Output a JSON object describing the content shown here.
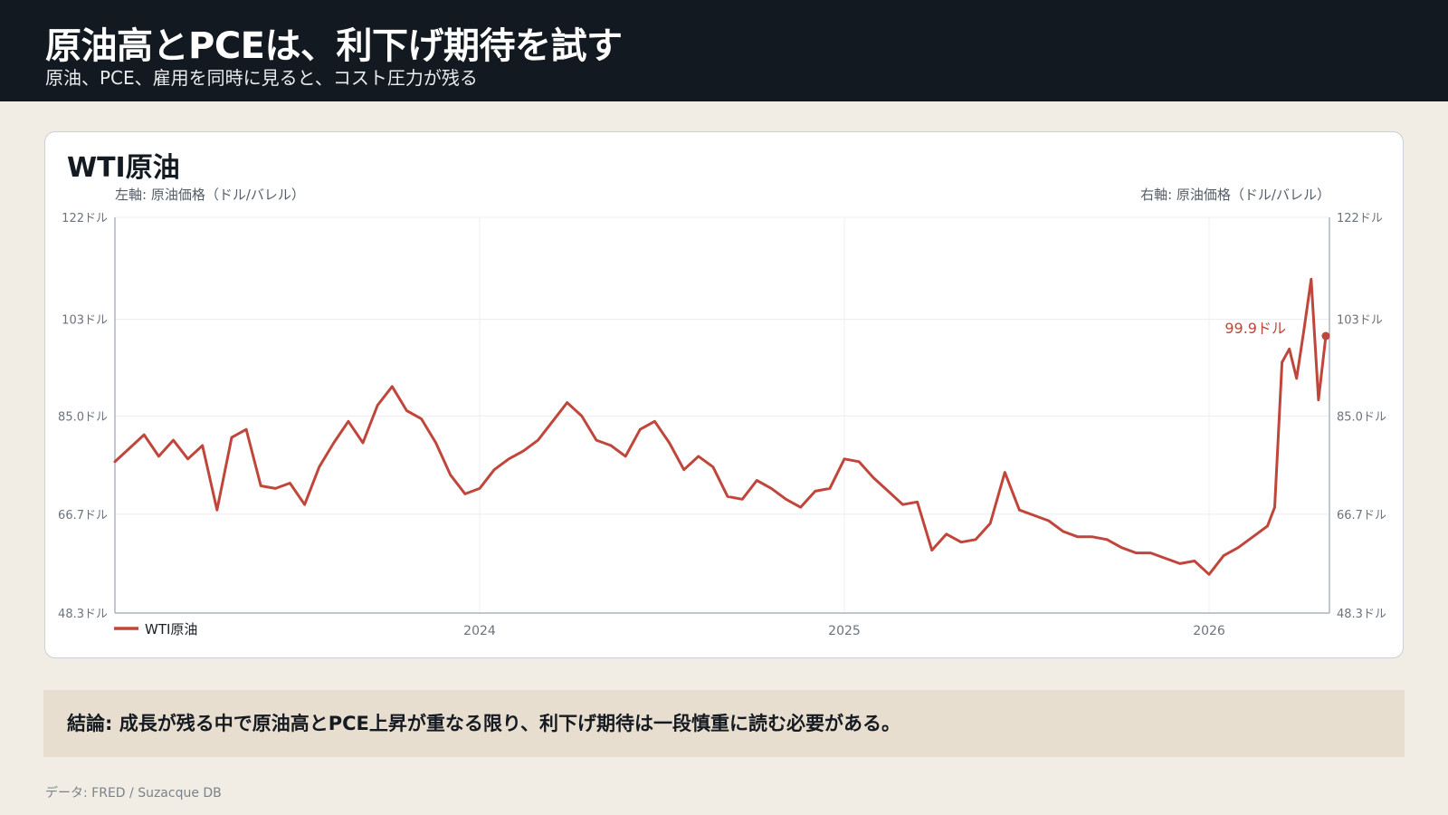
{
  "header": {
    "title": "原油高とPCEは、利下げ期待を試す",
    "subtitle": "原油、PCE、雇用を同時に見ると、コスト圧力が残る"
  },
  "card": {
    "title": "WTI原油",
    "left_axis_label": "左軸: 原油価格（ドル/バレル）",
    "right_axis_label": "右軸: 原油価格（ドル/バレル）"
  },
  "conclusion": "結論: 成長が残る中で原油高とPCE上昇が重なる限り、利下げ期待は一段慎重に読む必要がある。",
  "source": "データ: FRED / Suzacque DB",
  "colors": {
    "series": "#c0463b",
    "header_bg": "#121920",
    "page_bg": "#f2ede4",
    "conclusion_bg": "#e8ded0"
  },
  "chart_data": {
    "type": "line",
    "title": "WTI原油",
    "ylabel_left": "左軸: 原油価格（ドル/バレル）",
    "ylabel_right": "右軸: 原油価格（ドル/バレル）",
    "ylim": [
      48.3,
      122
    ],
    "yticks": [
      "48.3ドル",
      "66.7ドル",
      "85.0ドル",
      "103ドル",
      "122ドル"
    ],
    "ytick_values": [
      48.3,
      66.7,
      85.0,
      103,
      122
    ],
    "xlim": [
      2023.0,
      2026.33
    ],
    "xticks": [
      "2024",
      "2025",
      "2026"
    ],
    "xtick_values": [
      2024.0,
      2025.0,
      2026.0
    ],
    "grid": true,
    "legend": "bottom-left",
    "last_value_label": "99.9ドル",
    "series": [
      {
        "name": "WTI原油",
        "x": [
          2023.0,
          2023.04,
          2023.08,
          2023.12,
          2023.16,
          2023.2,
          2023.24,
          2023.28,
          2023.32,
          2023.36,
          2023.4,
          2023.44,
          2023.48,
          2023.52,
          2023.56,
          2023.6,
          2023.64,
          2023.68,
          2023.72,
          2023.76,
          2023.8,
          2023.84,
          2023.88,
          2023.92,
          2023.96,
          2024.0,
          2024.04,
          2024.08,
          2024.12,
          2024.16,
          2024.2,
          2024.24,
          2024.28,
          2024.32,
          2024.36,
          2024.4,
          2024.44,
          2024.48,
          2024.52,
          2024.56,
          2024.6,
          2024.64,
          2024.68,
          2024.72,
          2024.76,
          2024.8,
          2024.84,
          2024.88,
          2024.92,
          2024.96,
          2025.0,
          2025.04,
          2025.08,
          2025.12,
          2025.16,
          2025.2,
          2025.24,
          2025.28,
          2025.32,
          2025.36,
          2025.4,
          2025.44,
          2025.48,
          2025.52,
          2025.56,
          2025.6,
          2025.64,
          2025.68,
          2025.72,
          2025.76,
          2025.8,
          2025.84,
          2025.88,
          2025.92,
          2025.96,
          2026.0,
          2026.04,
          2026.08,
          2026.12,
          2026.16,
          2026.18,
          2026.2,
          2026.22,
          2026.24,
          2026.26,
          2026.28,
          2026.3,
          2026.32
        ],
        "values": [
          76.5,
          79.0,
          81.5,
          77.5,
          80.5,
          77.0,
          79.5,
          67.5,
          81.0,
          82.5,
          72.0,
          71.5,
          72.5,
          68.5,
          75.5,
          80.0,
          84.0,
          80.0,
          87.0,
          90.5,
          86.0,
          84.5,
          80.0,
          74.0,
          70.5,
          71.5,
          75.0,
          77.0,
          78.5,
          80.5,
          84.0,
          87.5,
          85.0,
          80.5,
          79.5,
          77.5,
          82.5,
          84.0,
          80.0,
          75.0,
          77.5,
          75.5,
          70.0,
          69.5,
          73.0,
          71.5,
          69.5,
          68.0,
          71.0,
          71.5,
          77.0,
          76.5,
          73.5,
          71.0,
          68.5,
          69.0,
          60.0,
          63.0,
          61.5,
          62.0,
          65.0,
          74.5,
          67.5,
          66.5,
          65.5,
          63.5,
          62.5,
          62.5,
          62.0,
          60.5,
          59.5,
          59.5,
          58.5,
          57.5,
          58.0,
          55.5,
          59.0,
          60.5,
          62.5,
          64.5,
          68.0,
          95.0,
          97.5,
          92.0,
          101.0,
          110.5,
          88.0,
          99.9
        ]
      }
    ]
  }
}
